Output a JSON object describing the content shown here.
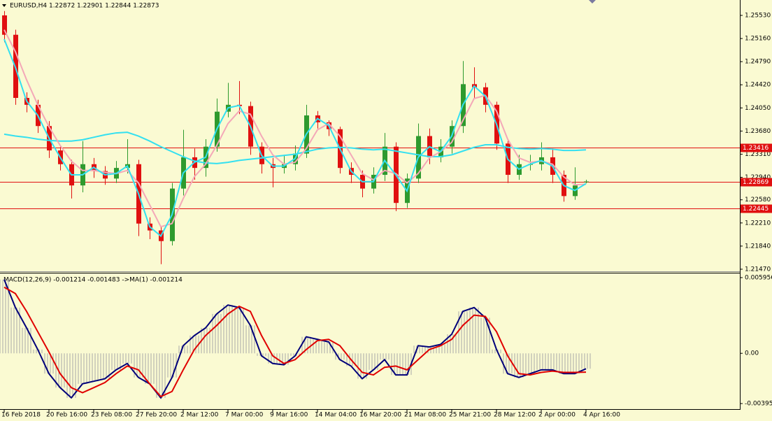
{
  "chart_data": [
    {
      "type": "candlestick",
      "title": "EURUSD,H4  1.22872 1.22901 1.22844 1.22873",
      "categories": [
        "16 Feb 2018",
        null,
        null,
        null,
        "20 Feb 16:00",
        null,
        null,
        null,
        "23 Feb 08:00",
        null,
        null,
        null,
        "27 Feb 20:00",
        null,
        null,
        null,
        "2 Mar 12:00",
        null,
        null,
        null,
        "7 Mar 00:00",
        null,
        null,
        null,
        "9 Mar 16:00",
        null,
        null,
        null,
        "14 Mar 04:00",
        null,
        null,
        null,
        "16 Mar 20:00",
        null,
        null,
        null,
        "21 Mar 08:00",
        null,
        null,
        null,
        "25 Mar 21:00",
        null,
        null,
        null,
        "28 Mar 12:00",
        null,
        null,
        null,
        "2 Apr 00:00",
        null,
        null,
        null,
        "4 Apr 16:00"
      ],
      "open": [
        1.2553,
        1.2522,
        1.2421,
        1.241,
        1.2376,
        1.2337,
        1.2315,
        1.2281,
        1.2315,
        1.2304,
        1.2292,
        1.2309,
        1.2315,
        1.222,
        1.2209,
        1.2192,
        1.2276,
        1.2326,
        1.2309,
        1.2343,
        1.2399,
        1.241,
        1.2408,
        1.2343,
        1.2315,
        1.2309,
        1.2315,
        1.2332,
        1.2393,
        1.2382,
        1.2371,
        1.2309,
        1.2298,
        1.2276,
        1.2298,
        1.2343,
        1.2253,
        1.2292,
        1.236,
        1.2326,
        1.2343,
        1.2376,
        1.2443,
        1.2438,
        1.241,
        1.2348,
        1.2298,
        1.2315,
        1.2315,
        1.2326,
        1.2298,
        1.2264,
        1.22872
      ],
      "high": [
        1.256,
        1.253,
        1.243,
        1.2418,
        1.2384,
        1.2345,
        1.2322,
        1.2352,
        1.2325,
        1.2312,
        1.232,
        1.2355,
        1.2322,
        1.223,
        1.2215,
        1.2285,
        1.237,
        1.234,
        1.2355,
        1.242,
        1.2445,
        1.2448,
        1.2415,
        1.235,
        1.2325,
        1.233,
        1.2345,
        1.241,
        1.24,
        1.2385,
        1.2375,
        1.2318,
        1.2305,
        1.231,
        1.2365,
        1.235,
        1.23,
        1.238,
        1.2372,
        1.2355,
        1.2385,
        1.248,
        1.247,
        1.2445,
        1.2415,
        1.2355,
        1.233,
        1.233,
        1.235,
        1.234,
        1.2305,
        1.231,
        1.22901
      ],
      "low": [
        1.251,
        1.241,
        1.2398,
        1.2365,
        1.2325,
        1.2305,
        1.226,
        1.227,
        1.2293,
        1.2282,
        1.2285,
        1.23,
        1.22,
        1.2195,
        1.2155,
        1.2185,
        1.2265,
        1.229,
        1.2295,
        1.2335,
        1.239,
        1.2395,
        1.233,
        1.23,
        1.2278,
        1.23,
        1.2305,
        1.2325,
        1.2372,
        1.236,
        1.23,
        1.2285,
        1.2262,
        1.2268,
        1.2288,
        1.224,
        1.2245,
        1.2285,
        1.2315,
        1.2318,
        1.2332,
        1.2365,
        1.242,
        1.2398,
        1.2338,
        1.2285,
        1.229,
        1.2305,
        1.2305,
        1.2285,
        1.2255,
        1.2258,
        1.22844
      ],
      "close": [
        1.2522,
        1.2421,
        1.241,
        1.2376,
        1.2337,
        1.2315,
        1.2281,
        1.2315,
        1.2304,
        1.2292,
        1.2309,
        1.2315,
        1.222,
        1.2209,
        1.2192,
        1.2276,
        1.2326,
        1.2309,
        1.2343,
        1.2399,
        1.241,
        1.2408,
        1.2343,
        1.2315,
        1.2309,
        1.2315,
        1.2332,
        1.2393,
        1.2382,
        1.2371,
        1.2309,
        1.2298,
        1.2276,
        1.2298,
        1.2343,
        1.2253,
        1.2292,
        1.236,
        1.2326,
        1.2343,
        1.2376,
        1.2443,
        1.2438,
        1.241,
        1.2348,
        1.2298,
        1.2315,
        1.2315,
        1.2326,
        1.2298,
        1.2264,
        1.2281,
        1.22873
      ],
      "up_color": "#2e9a2e",
      "down_color": "#e01010",
      "series": [
        {
          "color": "#33e0f0",
          "values": [
            1.2363,
            1.236,
            1.2358,
            1.2355,
            1.2353,
            1.2352,
            1.2352,
            1.2354,
            1.2358,
            1.2362,
            1.2365,
            1.2366,
            1.236,
            1.2352,
            1.2343,
            1.2335,
            1.2327,
            1.232,
            1.2317,
            1.2316,
            1.2318,
            1.2321,
            1.2323,
            1.2325,
            1.2327,
            1.2329,
            1.2331,
            1.2335,
            1.2339,
            1.2341,
            1.2342,
            1.2341,
            1.2339,
            1.2338,
            1.2339,
            1.2336,
            1.2333,
            1.233,
            1.2327,
            1.2327,
            1.233,
            1.2336,
            1.2342,
            1.2346,
            1.2346,
            1.2342,
            1.234,
            1.2339,
            1.234,
            1.2339,
            1.2337,
            1.2337,
            1.2338
          ]
        },
        {
          "color": "#f4a8b8",
          "values": [
            1.253,
            1.2495,
            1.245,
            1.241,
            1.2375,
            1.2345,
            1.232,
            1.2305,
            1.2305,
            1.2302,
            1.23,
            1.2305,
            1.2285,
            1.225,
            1.2215,
            1.222,
            1.226,
            1.2295,
            1.2315,
            1.2345,
            1.238,
            1.24,
            1.2395,
            1.236,
            1.233,
            1.2315,
            1.2318,
            1.234,
            1.237,
            1.238,
            1.236,
            1.233,
            1.23,
            1.229,
            1.2305,
            1.23,
            1.2285,
            1.23,
            1.2325,
            1.2335,
            1.235,
            1.2385,
            1.242,
            1.2425,
            1.24,
            1.2355,
            1.2325,
            1.2318,
            1.232,
            1.2315,
            1.2295,
            1.2282,
            1.2283
          ]
        },
        {
          "color": "#33e0f0",
          "values": [
            1.2515,
            1.247,
            1.2416,
            1.2393,
            1.2357,
            1.2326,
            1.2298,
            1.2298,
            1.231,
            1.2298,
            1.23,
            1.2312,
            1.2268,
            1.2215,
            1.22,
            1.2234,
            1.2301,
            1.2318,
            1.2326,
            1.2371,
            1.2405,
            1.2409,
            1.2376,
            1.2329,
            1.2312,
            1.2312,
            1.2324,
            1.2363,
            1.2388,
            1.2377,
            1.234,
            1.2304,
            1.2287,
            1.2287,
            1.2321,
            1.2298,
            1.2272,
            1.2326,
            1.2343,
            1.2335,
            1.236,
            1.241,
            1.244,
            1.2424,
            1.2379,
            1.2323,
            1.2307,
            1.2315,
            1.2321,
            1.2312,
            1.2281,
            1.2273,
            1.2284
          ]
        }
      ],
      "levels": [
        1.23416,
        1.22869,
        1.22445
      ],
      "level_color": "#e01010",
      "ylim": [
        1.21436,
        1.25776
      ],
      "yticks": [
        {
          "value": 1.2553,
          "label": "1.25530"
        },
        {
          "value": 1.2516,
          "label": "1.25160"
        },
        {
          "value": 1.2479,
          "label": "1.24790"
        },
        {
          "value": 1.2442,
          "label": "1.24420"
        },
        {
          "value": 1.2405,
          "label": "1.24050"
        },
        {
          "value": 1.2368,
          "label": "1.23680"
        },
        {
          "value": 1.2331,
          "label": "1.23310"
        },
        {
          "value": 1.2294,
          "label": "1.22940"
        },
        {
          "value": 1.2258,
          "label": "1.22580"
        },
        {
          "value": 1.2221,
          "label": "1.22210"
        },
        {
          "value": 1.2184,
          "label": "1.21840"
        },
        {
          "value": 1.2147,
          "label": "1.21470"
        }
      ]
    },
    {
      "type": "line",
      "title": "MACD(12,26,9) -0.001214 -0.001483  ->MA(1) -0.001214",
      "histogram": true,
      "histogram_color": "#a8a8a8",
      "series": [
        {
          "color": "#00007a",
          "values": [
            0.0058,
            0.0036,
            0.002,
            0.0003,
            -0.0016,
            -0.0027,
            -0.0035,
            -0.0024,
            -0.0022,
            -0.002,
            -0.0013,
            -0.0008,
            -0.0019,
            -0.0024,
            -0.0035,
            -0.0019,
            0.0006,
            0.0014,
            0.002,
            0.0031,
            0.0038,
            0.0036,
            0.0022,
            -0.0002,
            -0.0008,
            -0.0009,
            -0.0002,
            0.0013,
            0.0011,
            0.0009,
            -0.0005,
            -0.001,
            -0.002,
            -0.0013,
            -0.0005,
            -0.0017,
            -0.0017,
            0.0006,
            0.0005,
            0.0007,
            0.0015,
            0.0033,
            0.0036,
            0.0028,
            0.0003,
            -0.0016,
            -0.0019,
            -0.0016,
            -0.0013,
            -0.0013,
            -0.0016,
            -0.0016,
            -0.001214
          ]
        },
        {
          "color": "#e00000",
          "values": [
            0.0052,
            0.0047,
            0.0033,
            0.0017,
            0.0001,
            -0.0016,
            -0.0027,
            -0.0031,
            -0.0027,
            -0.0023,
            -0.0016,
            -0.001,
            -0.0013,
            -0.0024,
            -0.0034,
            -0.003,
            -0.0013,
            0.0003,
            0.0014,
            0.0022,
            0.0031,
            0.0037,
            0.0033,
            0.0014,
            -0.0002,
            -0.0008,
            -0.0005,
            0.0003,
            0.001,
            0.0011,
            0.0006,
            -0.0005,
            -0.0015,
            -0.0017,
            -0.0011,
            -0.001,
            -0.0013,
            -0.0005,
            0.0003,
            0.0006,
            0.0011,
            0.0022,
            0.003,
            0.0029,
            0.0017,
            -0.0002,
            -0.0016,
            -0.0017,
            -0.0015,
            -0.0014,
            -0.0015,
            -0.0015,
            -0.001483
          ]
        }
      ],
      "ylim": [
        -0.00439,
        0.006339
      ],
      "yticks": [
        0.005956,
        {
          "value": 0,
          "label": "0.00"
        },
        -0.003953
      ]
    }
  ]
}
